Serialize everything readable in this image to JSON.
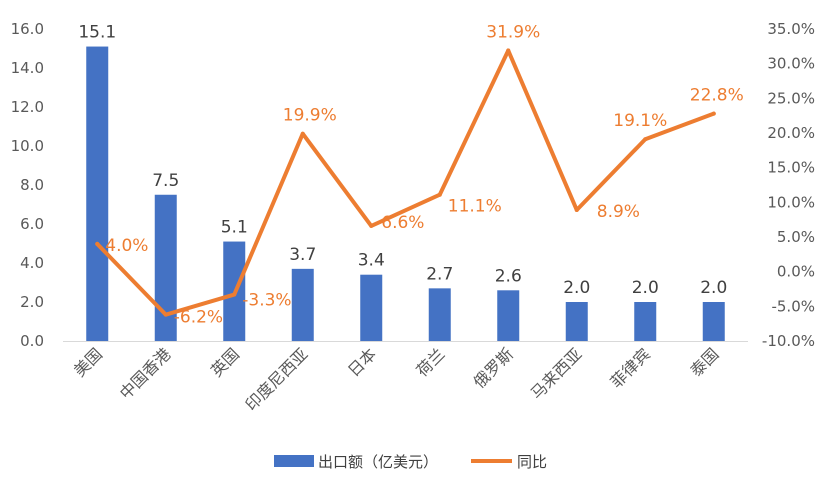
{
  "chart_data": {
    "type": "bar",
    "categories": [
      "美国",
      "中国香港",
      "英国",
      "印度尼西亚",
      "日本",
      "荷兰",
      "俄罗斯",
      "马来西亚",
      "菲律宾",
      "泰国"
    ],
    "series": [
      {
        "name": "出口额（亿美元）",
        "type": "bar",
        "axis": "left",
        "color": "#4472C4",
        "values": [
          15.1,
          7.5,
          5.1,
          3.7,
          3.4,
          2.7,
          2.6,
          2.0,
          2.0,
          2.0
        ],
        "labels": [
          "15.1",
          "7.5",
          "5.1",
          "3.7",
          "3.4",
          "2.7",
          "2.6",
          "2.0",
          "2.0",
          "2.0"
        ]
      },
      {
        "name": "同比",
        "type": "line",
        "axis": "right",
        "color": "#ED7D31",
        "values": [
          4.0,
          -6.2,
          -3.3,
          19.9,
          6.6,
          11.1,
          31.9,
          8.9,
          19.1,
          22.8
        ],
        "labels": [
          "4.0%",
          "-6.2%",
          "-3.3%",
          "19.9%",
          "6.6%",
          "11.1%",
          "31.9%",
          "8.9%",
          "19.1%",
          "22.8%"
        ]
      }
    ],
    "y_left": {
      "min": 0,
      "max": 16,
      "ticks": [
        "0.0",
        "2.0",
        "4.0",
        "6.0",
        "8.0",
        "10.0",
        "12.0",
        "14.0",
        "16.0"
      ]
    },
    "y_right": {
      "min": -10,
      "max": 35,
      "ticks": [
        "-10.0%",
        "-5.0%",
        "0.0%",
        "5.0%",
        "10.0%",
        "15.0%",
        "20.0%",
        "25.0%",
        "30.0%",
        "35.0%"
      ]
    },
    "grid": false,
    "legend_position": "bottom"
  }
}
